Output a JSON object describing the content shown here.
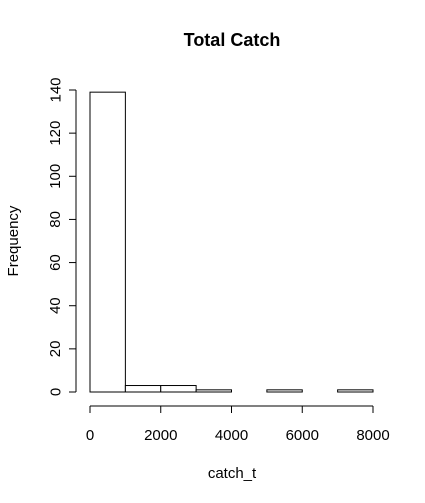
{
  "chart_data": {
    "type": "bar",
    "subtype": "histogram",
    "title": "Total Catch",
    "xlabel": "catch_t",
    "ylabel": "Frequency",
    "bins": [
      {
        "from": 0,
        "to": 1000,
        "count": 139
      },
      {
        "from": 1000,
        "to": 2000,
        "count": 3
      },
      {
        "from": 2000,
        "to": 3000,
        "count": 3
      },
      {
        "from": 3000,
        "to": 4000,
        "count": 1
      },
      {
        "from": 4000,
        "to": 5000,
        "count": 0
      },
      {
        "from": 5000,
        "to": 6000,
        "count": 1
      },
      {
        "from": 6000,
        "to": 7000,
        "count": 0
      },
      {
        "from": 7000,
        "to": 8000,
        "count": 1
      }
    ],
    "xlim": [
      0,
      8000
    ],
    "ylim": [
      0,
      140
    ],
    "xticks": [
      0,
      2000,
      4000,
      6000,
      8000
    ],
    "yticks": [
      0,
      20,
      40,
      60,
      80,
      100,
      120,
      140
    ],
    "xtick_labels": [
      "0",
      "2000",
      "4000",
      "6000",
      "8000"
    ],
    "ytick_labels": [
      "0",
      "20",
      "40",
      "60",
      "80",
      "100",
      "120",
      "140"
    ],
    "bar_fill": "#ffffff",
    "bar_stroke": "#000000",
    "grid": false,
    "legend": "none"
  }
}
